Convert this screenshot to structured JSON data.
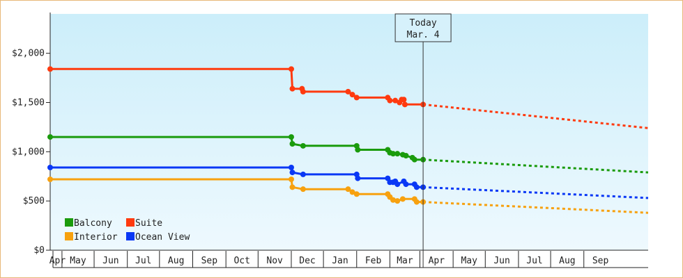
{
  "chart_data": {
    "type": "line",
    "title": "",
    "xlabel": "",
    "ylabel": "",
    "ylim": [
      0,
      2400
    ],
    "y_ticks": [
      0,
      500,
      1000,
      1500,
      2000
    ],
    "y_tick_labels": [
      "$0",
      "$500",
      "$1,000",
      "$1,500",
      "$2,000"
    ],
    "x_range": [
      "2013-03-21",
      "2014-09-30"
    ],
    "x_tick_labels": [
      "Apr",
      "May",
      "Jun",
      "Jul",
      "Aug",
      "Sep",
      "Oct",
      "Nov",
      "Dec",
      "Jan",
      "Feb",
      "Mar",
      "Apr",
      "May",
      "Jun",
      "Jul",
      "Aug",
      "Sep"
    ],
    "today_marker": {
      "date": "2014-03-04",
      "label_line1": "Today",
      "label_line2": "Mar. 4"
    },
    "background_gradient": [
      "#cceefa",
      "#eef9fe"
    ],
    "grid": false,
    "legend_position": "bottom-left",
    "series": [
      {
        "name": "Balcony",
        "color": "#1a9b0c",
        "points": [
          {
            "date": "2013-03-21",
            "y": 1150
          },
          {
            "date": "2013-11-01",
            "y": 1150
          },
          {
            "date": "2013-11-02",
            "y": 1080
          },
          {
            "date": "2013-11-12",
            "y": 1060
          },
          {
            "date": "2014-01-01",
            "y": 1060
          },
          {
            "date": "2014-01-02",
            "y": 1020
          },
          {
            "date": "2014-01-30",
            "y": 1020
          },
          {
            "date": "2014-02-01",
            "y": 990
          },
          {
            "date": "2014-02-04",
            "y": 980
          },
          {
            "date": "2014-02-08",
            "y": 980
          },
          {
            "date": "2014-02-13",
            "y": 970
          },
          {
            "date": "2014-02-16",
            "y": 960
          },
          {
            "date": "2014-02-22",
            "y": 940
          },
          {
            "date": "2014-02-24",
            "y": 920
          },
          {
            "date": "2014-03-04",
            "y": 920
          }
        ],
        "forecast": [
          {
            "date": "2014-03-04",
            "y": 920
          },
          {
            "date": "2014-09-30",
            "y": 790
          }
        ]
      },
      {
        "name": "Suite",
        "color": "#ff3a0f",
        "points": [
          {
            "date": "2013-03-21",
            "y": 1840
          },
          {
            "date": "2013-11-01",
            "y": 1840
          },
          {
            "date": "2013-11-02",
            "y": 1640
          },
          {
            "date": "2013-11-11",
            "y": 1640
          },
          {
            "date": "2013-11-12",
            "y": 1610
          },
          {
            "date": "2013-12-24",
            "y": 1610
          },
          {
            "date": "2013-12-28",
            "y": 1580
          },
          {
            "date": "2014-01-01",
            "y": 1550
          },
          {
            "date": "2014-01-30",
            "y": 1550
          },
          {
            "date": "2014-02-01",
            "y": 1520
          },
          {
            "date": "2014-02-06",
            "y": 1520
          },
          {
            "date": "2014-02-10",
            "y": 1500
          },
          {
            "date": "2014-02-12",
            "y": 1530
          },
          {
            "date": "2014-02-14",
            "y": 1530
          },
          {
            "date": "2014-02-15",
            "y": 1480
          },
          {
            "date": "2014-03-04",
            "y": 1480
          }
        ],
        "forecast": [
          {
            "date": "2014-03-04",
            "y": 1480
          },
          {
            "date": "2014-09-30",
            "y": 1240
          }
        ]
      },
      {
        "name": "Interior",
        "color": "#f7a10f",
        "points": [
          {
            "date": "2013-03-21",
            "y": 720
          },
          {
            "date": "2013-11-01",
            "y": 720
          },
          {
            "date": "2013-11-02",
            "y": 640
          },
          {
            "date": "2013-11-12",
            "y": 620
          },
          {
            "date": "2013-12-24",
            "y": 620
          },
          {
            "date": "2013-12-28",
            "y": 590
          },
          {
            "date": "2014-01-01",
            "y": 570
          },
          {
            "date": "2014-01-30",
            "y": 570
          },
          {
            "date": "2014-02-01",
            "y": 540
          },
          {
            "date": "2014-02-04",
            "y": 510
          },
          {
            "date": "2014-02-08",
            "y": 500
          },
          {
            "date": "2014-02-13",
            "y": 520
          },
          {
            "date": "2014-02-24",
            "y": 520
          },
          {
            "date": "2014-02-26",
            "y": 490
          },
          {
            "date": "2014-03-04",
            "y": 490
          }
        ],
        "forecast": [
          {
            "date": "2014-03-04",
            "y": 490
          },
          {
            "date": "2014-09-30",
            "y": 380
          }
        ]
      },
      {
        "name": "Ocean View",
        "color": "#0a38f5",
        "points": [
          {
            "date": "2013-03-21",
            "y": 840
          },
          {
            "date": "2013-11-01",
            "y": 840
          },
          {
            "date": "2013-11-02",
            "y": 790
          },
          {
            "date": "2013-11-12",
            "y": 770
          },
          {
            "date": "2014-01-01",
            "y": 770
          },
          {
            "date": "2014-01-02",
            "y": 730
          },
          {
            "date": "2014-01-30",
            "y": 730
          },
          {
            "date": "2014-02-01",
            "y": 690
          },
          {
            "date": "2014-02-04",
            "y": 690
          },
          {
            "date": "2014-02-06",
            "y": 700
          },
          {
            "date": "2014-02-08",
            "y": 670
          },
          {
            "date": "2014-02-14",
            "y": 700
          },
          {
            "date": "2014-02-16",
            "y": 670
          },
          {
            "date": "2014-02-24",
            "y": 670
          },
          {
            "date": "2014-02-26",
            "y": 640
          },
          {
            "date": "2014-03-04",
            "y": 640
          }
        ],
        "forecast": [
          {
            "date": "2014-03-04",
            "y": 640
          },
          {
            "date": "2014-09-30",
            "y": 530
          }
        ]
      }
    ],
    "legend_order": [
      "Balcony",
      "Suite",
      "Interior",
      "Ocean View"
    ]
  }
}
